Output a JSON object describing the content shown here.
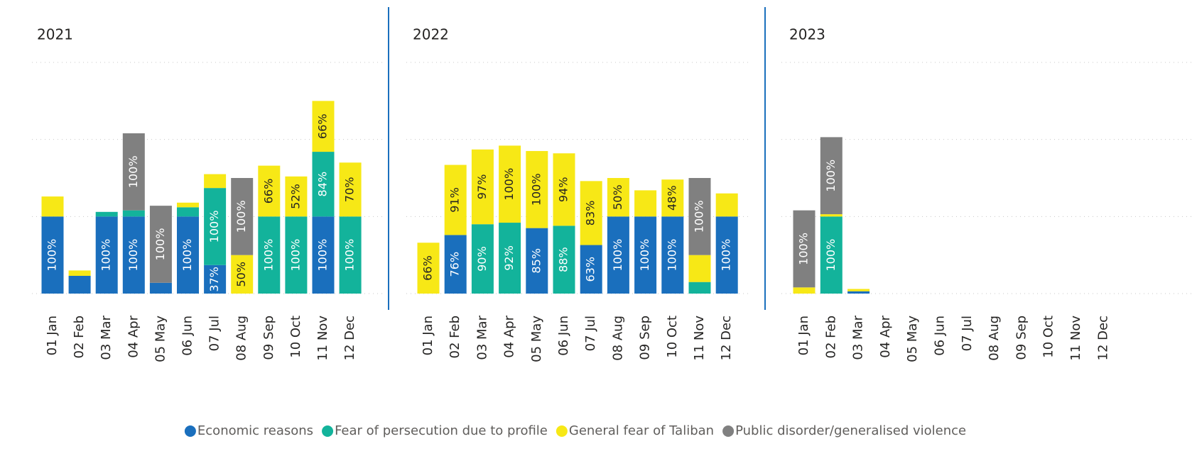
{
  "chart_data": [
    {
      "type": "stacked_bar",
      "title": "2021",
      "categories": [
        "01 Jan",
        "02 Feb",
        "03 Mar",
        "04 Apr",
        "05 May",
        "06 Jun",
        "07 Jul",
        "08 Aug",
        "09 Sep",
        "10 Oct",
        "11 Nov",
        "12 Dec"
      ],
      "ylim": [
        0,
        300
      ],
      "gridlines": [
        0,
        100,
        200,
        300
      ],
      "series": [
        {
          "name": "Economic reasons",
          "color": "#1a6fbd",
          "values": [
            100,
            23,
            100,
            100,
            14,
            100,
            37,
            null,
            null,
            null,
            100,
            null
          ],
          "value_labels": [
            "100%",
            null,
            "100%",
            "100%",
            null,
            "100%",
            "37%",
            null,
            null,
            null,
            "100%",
            null
          ]
        },
        {
          "name": "Fear of persecution due to profile",
          "color": "#13b39b",
          "values": [
            null,
            null,
            6,
            8,
            null,
            12,
            100,
            null,
            100,
            100,
            84,
            100
          ],
          "value_labels": [
            null,
            null,
            null,
            null,
            null,
            null,
            "100%",
            null,
            "100%",
            "100%",
            "84%",
            "100%"
          ]
        },
        {
          "name": "General fear of Taliban",
          "color": "#f7e816",
          "values": [
            26,
            7,
            null,
            null,
            null,
            6,
            18,
            50,
            66,
            52,
            66,
            70
          ],
          "value_labels": [
            null,
            null,
            null,
            null,
            null,
            null,
            null,
            "50%",
            "66%",
            "52%",
            "66%",
            "70%"
          ]
        },
        {
          "name": "Public disorder/generalised violence",
          "color": "#808080",
          "values": [
            null,
            null,
            null,
            100,
            100,
            null,
            null,
            100,
            null,
            null,
            null,
            null
          ],
          "value_labels": [
            null,
            null,
            null,
            "100%",
            "100%",
            null,
            null,
            "100%",
            null,
            null,
            null,
            null
          ]
        }
      ]
    },
    {
      "type": "stacked_bar",
      "title": "2022",
      "categories": [
        "01 Jan",
        "02 Feb",
        "03 Mar",
        "04 Apr",
        "05 May",
        "06 Jun",
        "07 Jul",
        "08 Aug",
        "09 Sep",
        "10 Oct",
        "11 Nov",
        "12 Dec"
      ],
      "ylim": [
        0,
        300
      ],
      "gridlines": [
        0,
        100,
        200,
        300
      ],
      "series": [
        {
          "name": "Economic reasons",
          "color": "#1a6fbd",
          "values": [
            null,
            76,
            null,
            null,
            85,
            null,
            63,
            100,
            100,
            100,
            null,
            100
          ],
          "value_labels": [
            null,
            "76%",
            null,
            null,
            "85%",
            null,
            "63%",
            "100%",
            "100%",
            "100%",
            null,
            "100%"
          ]
        },
        {
          "name": "Fear of persecution due to profile",
          "color": "#13b39b",
          "values": [
            null,
            null,
            90,
            92,
            null,
            88,
            null,
            null,
            null,
            null,
            15,
            null
          ],
          "value_labels": [
            null,
            null,
            "90%",
            "92%",
            null,
            "88%",
            null,
            null,
            null,
            null,
            null,
            null
          ]
        },
        {
          "name": "General fear of Taliban",
          "color": "#f7e816",
          "values": [
            66,
            91,
            97,
            100,
            100,
            94,
            83,
            50,
            34,
            48,
            35,
            30
          ],
          "value_labels": [
            "66%",
            "91%",
            "97%",
            "100%",
            "100%",
            "94%",
            "83%",
            "50%",
            null,
            "48%",
            null,
            null
          ]
        },
        {
          "name": "Public disorder/generalised violence",
          "color": "#808080",
          "values": [
            null,
            null,
            null,
            null,
            null,
            null,
            null,
            null,
            null,
            null,
            100,
            null
          ],
          "value_labels": [
            null,
            null,
            null,
            null,
            null,
            null,
            null,
            null,
            null,
            null,
            "100%",
            null
          ]
        }
      ]
    },
    {
      "type": "stacked_bar",
      "title": "2023",
      "categories": [
        "01 Jan",
        "02 Feb",
        "03 Mar",
        "04 Apr",
        "05 May",
        "06 Jun",
        "07 Jul",
        "08 Aug",
        "09 Sep",
        "10 Oct",
        "11 Nov",
        "12 Dec"
      ],
      "ylim": [
        0,
        300
      ],
      "gridlines": [
        0,
        100,
        200,
        300
      ],
      "series": [
        {
          "name": "Economic reasons",
          "color": "#1a6fbd",
          "values": [
            null,
            null,
            3,
            null,
            null,
            null,
            null,
            null,
            null,
            null,
            null,
            null
          ],
          "value_labels": [
            null,
            null,
            null,
            null,
            null,
            null,
            null,
            null,
            null,
            null,
            null,
            null
          ]
        },
        {
          "name": "Fear of persecution due to profile",
          "color": "#13b39b",
          "values": [
            null,
            100,
            null,
            null,
            null,
            null,
            null,
            null,
            null,
            null,
            null,
            null
          ],
          "value_labels": [
            null,
            "100%",
            null,
            null,
            null,
            null,
            null,
            null,
            null,
            null,
            null,
            null
          ]
        },
        {
          "name": "General fear of Taliban",
          "color": "#f7e816",
          "values": [
            8,
            3,
            3,
            null,
            null,
            null,
            null,
            null,
            null,
            null,
            null,
            null
          ],
          "value_labels": [
            null,
            null,
            null,
            null,
            null,
            null,
            null,
            null,
            null,
            null,
            null,
            null
          ]
        },
        {
          "name": "Public disorder/generalised violence",
          "color": "#808080",
          "values": [
            100,
            100,
            null,
            null,
            null,
            null,
            null,
            null,
            null,
            null,
            null,
            null
          ],
          "value_labels": [
            "100%",
            "100%",
            null,
            null,
            null,
            null,
            null,
            null,
            null,
            null,
            null,
            null
          ]
        }
      ]
    }
  ]
}
